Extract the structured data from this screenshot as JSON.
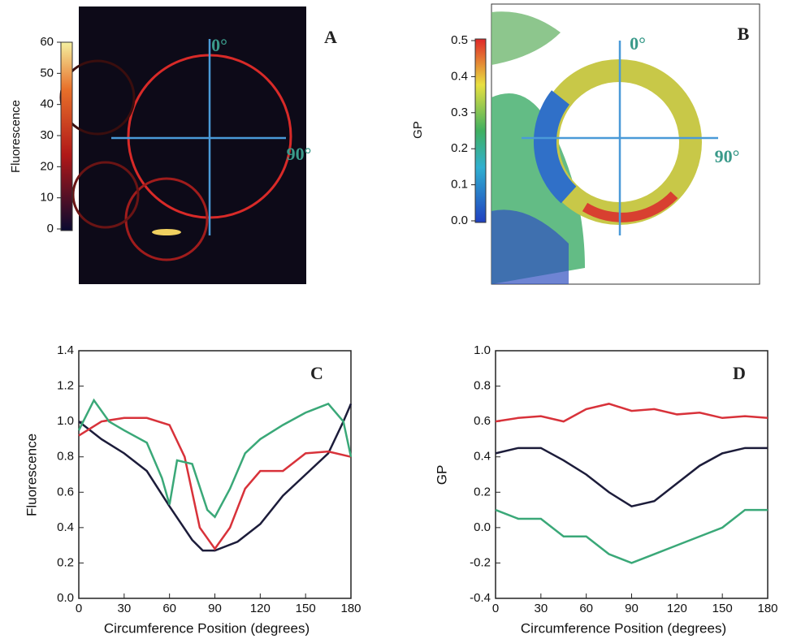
{
  "chart_data": [
    {
      "type": "image",
      "annotations": [
        "0°",
        "90°",
        "A"
      ],
      "colorbar": {
        "label": "Fluorescence",
        "lim": [
          0,
          60
        ],
        "ticks": [
          0,
          10,
          20,
          30,
          40,
          50,
          60
        ]
      }
    },
    {
      "type": "image",
      "annotations": [
        "0°",
        "90°",
        "B"
      ],
      "colorbar": {
        "label": "GP",
        "lim": [
          0,
          0.5
        ],
        "ticks": [
          {
            "value": 0,
            "label": "0.0"
          },
          0.1,
          0.2,
          0.3,
          0.4,
          0.5
        ]
      }
    },
    {
      "type": "line",
      "annotations": [
        "C"
      ],
      "x_label": "Circumference Position (degrees)",
      "y_label": "Fluorescence",
      "xlim": [
        0,
        180
      ],
      "xticks": [
        0,
        30,
        60,
        90,
        120,
        150,
        180
      ],
      "ylim": [
        0,
        1.4
      ],
      "yticks": [
        {
          "value": 0,
          "label": "0.0"
        },
        0.2,
        0.4,
        0.6,
        0.8,
        {
          "value": 1,
          "label": "1.0"
        },
        1.2,
        1.4
      ],
      "series": [
        {
          "color": "#1c1c3a",
          "x": [
            0,
            15,
            30,
            45,
            60,
            75,
            82,
            90,
            105,
            120,
            135,
            150,
            165,
            175,
            180
          ],
          "values": [
            1.0,
            0.9,
            0.82,
            0.72,
            0.52,
            0.33,
            0.27,
            0.27,
            0.32,
            0.42,
            0.58,
            0.7,
            0.82,
            1.0,
            1.1
          ]
        },
        {
          "color": "#d8323a",
          "x": [
            0,
            15,
            30,
            45,
            60,
            70,
            80,
            90,
            100,
            110,
            120,
            135,
            150,
            165,
            180
          ],
          "values": [
            0.92,
            1.0,
            1.02,
            1.02,
            0.98,
            0.8,
            0.4,
            0.28,
            0.4,
            0.62,
            0.72,
            0.72,
            0.82,
            0.83,
            0.8
          ]
        },
        {
          "color": "#3aa878",
          "x": [
            0,
            10,
            20,
            30,
            45,
            55,
            60,
            65,
            75,
            85,
            90,
            100,
            110,
            120,
            135,
            150,
            165,
            175,
            180
          ],
          "values": [
            0.95,
            1.12,
            1.0,
            0.95,
            0.88,
            0.68,
            0.53,
            0.78,
            0.76,
            0.5,
            0.46,
            0.62,
            0.82,
            0.9,
            0.98,
            1.05,
            1.1,
            1.0,
            0.8
          ]
        }
      ]
    },
    {
      "type": "line",
      "annotations": [
        "D"
      ],
      "x_label": "Circumference Position (degrees)",
      "y_label": "GP",
      "xlim": [
        0,
        180
      ],
      "xticks": [
        0,
        30,
        60,
        90,
        120,
        150,
        180
      ],
      "ylim": [
        -0.4,
        1.0
      ],
      "yticks": [
        -0.4,
        -0.2,
        {
          "value": 0,
          "label": "0.0"
        },
        0.2,
        0.4,
        0.6,
        0.8,
        {
          "value": 1,
          "label": "1.0"
        }
      ],
      "series": [
        {
          "color": "#d8323a",
          "x": [
            0,
            15,
            30,
            45,
            60,
            75,
            90,
            105,
            120,
            135,
            150,
            165,
            180
          ],
          "values": [
            0.6,
            0.62,
            0.63,
            0.6,
            0.67,
            0.7,
            0.66,
            0.67,
            0.64,
            0.65,
            0.62,
            0.63,
            0.62
          ]
        },
        {
          "color": "#1c1c3a",
          "x": [
            0,
            15,
            30,
            45,
            60,
            75,
            90,
            105,
            120,
            135,
            150,
            165,
            180
          ],
          "values": [
            0.42,
            0.45,
            0.45,
            0.38,
            0.3,
            0.2,
            0.12,
            0.15,
            0.25,
            0.35,
            0.42,
            0.45,
            0.45
          ]
        },
        {
          "color": "#3aa878",
          "x": [
            0,
            15,
            30,
            45,
            60,
            75,
            90,
            105,
            120,
            135,
            150,
            165,
            180
          ],
          "values": [
            0.1,
            0.05,
            0.05,
            -0.05,
            -0.05,
            -0.15,
            -0.2,
            -0.15,
            -0.1,
            -0.05,
            0.0,
            0.1,
            0.1
          ]
        }
      ]
    }
  ]
}
